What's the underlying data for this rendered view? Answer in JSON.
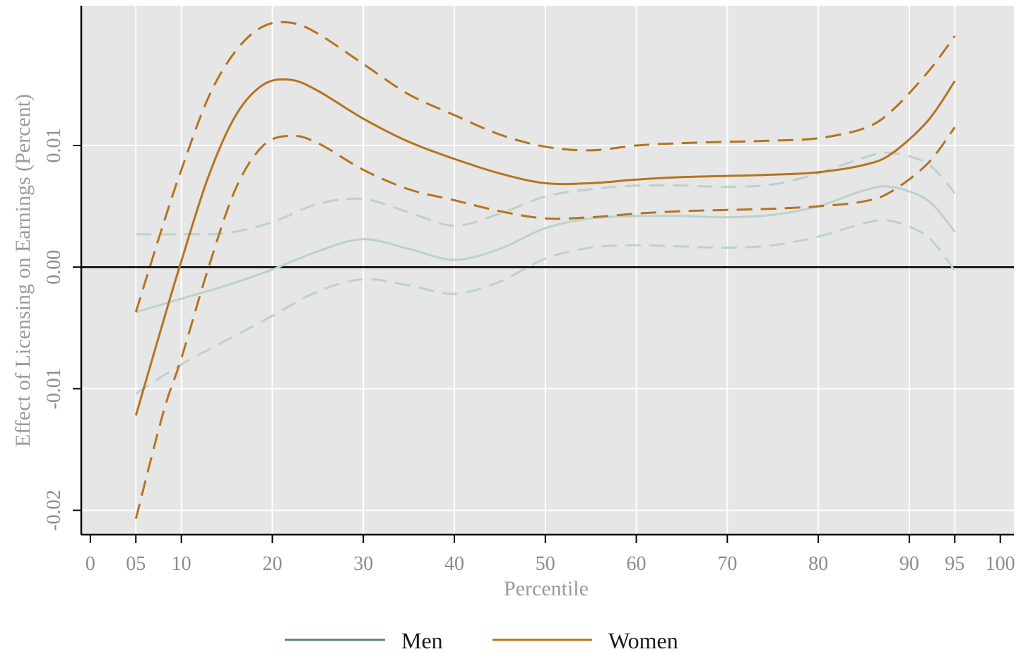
{
  "chart_data": {
    "type": "line",
    "xlabel": "Percentile",
    "ylabel": "Effect of Licensing on Earnings (Percent)",
    "xlim": [
      -1,
      101.5
    ],
    "ylim": [
      -0.022,
      0.0215
    ],
    "x_ticks": [
      {
        "value": 0,
        "label": "0"
      },
      {
        "value": 5,
        "label": "05"
      },
      {
        "value": 10,
        "label": "10"
      },
      {
        "value": 20,
        "label": "20"
      },
      {
        "value": 30,
        "label": "30"
      },
      {
        "value": 40,
        "label": "40"
      },
      {
        "value": 50,
        "label": "50"
      },
      {
        "value": 60,
        "label": "60"
      },
      {
        "value": 70,
        "label": "70"
      },
      {
        "value": 80,
        "label": "80"
      },
      {
        "value": 90,
        "label": "90"
      },
      {
        "value": 95,
        "label": "95"
      },
      {
        "value": 100,
        "label": "100"
      }
    ],
    "x_grid": [
      5,
      10,
      20,
      30,
      40,
      50,
      60,
      70,
      80,
      90,
      95
    ],
    "y_ticks": [
      {
        "value": -0.02,
        "label": "-0.02"
      },
      {
        "value": -0.01,
        "label": "-0.01"
      },
      {
        "value": 0.0,
        "label": "0.00"
      },
      {
        "value": 0.01,
        "label": "0.01"
      }
    ],
    "grid": true,
    "reference_line_y": 0,
    "legend": {
      "position": "bottom",
      "entries": [
        "Men",
        "Women"
      ]
    },
    "series": [
      {
        "name": "Men",
        "role": "estimate",
        "color": "#bcd2cc",
        "legend_color": "#4f8a7a",
        "dashed": false,
        "x": [
          5,
          10,
          15,
          20,
          25,
          30,
          35,
          40,
          45,
          50,
          55,
          60,
          65,
          70,
          75,
          80,
          85,
          88,
          92,
          95
        ],
        "y": [
          -0.0037,
          -0.0026,
          -0.0015,
          -0.0002,
          0.0013,
          0.0023,
          0.0015,
          0.0006,
          0.0015,
          0.0032,
          0.004,
          0.0042,
          0.0042,
          0.0041,
          0.0043,
          0.005,
          0.0063,
          0.0066,
          0.0055,
          0.0029
        ]
      },
      {
        "name": "Men",
        "role": "upper",
        "color": "#bcd2cc",
        "dashed": true,
        "x": [
          5,
          10,
          15,
          20,
          25,
          30,
          35,
          40,
          45,
          50,
          55,
          60,
          65,
          70,
          75,
          80,
          85,
          88,
          92,
          95
        ],
        "y": [
          0.0027,
          0.0027,
          0.0028,
          0.0037,
          0.0052,
          0.0056,
          0.0045,
          0.0034,
          0.0044,
          0.0058,
          0.0064,
          0.0067,
          0.0067,
          0.0066,
          0.0068,
          0.0077,
          0.009,
          0.0094,
          0.0085,
          0.0061
        ]
      },
      {
        "name": "Men",
        "role": "lower",
        "color": "#bcd2cc",
        "dashed": true,
        "x": [
          5,
          10,
          15,
          20,
          25,
          30,
          35,
          40,
          45,
          50,
          55,
          60,
          65,
          70,
          75,
          80,
          85,
          88,
          92,
          95
        ],
        "y": [
          -0.0104,
          -0.008,
          -0.006,
          -0.004,
          -0.002,
          -0.001,
          -0.0015,
          -0.0022,
          -0.0012,
          0.0007,
          0.0016,
          0.0018,
          0.0017,
          0.0016,
          0.0018,
          0.0025,
          0.0036,
          0.0038,
          0.0025,
          -0.0003
        ]
      },
      {
        "name": "Women",
        "role": "estimate",
        "color": "#b5741e",
        "legend_color": "#b5741e",
        "dashed": false,
        "x": [
          5,
          8,
          10,
          13,
          16,
          19,
          22,
          25,
          30,
          35,
          40,
          45,
          50,
          55,
          60,
          65,
          70,
          75,
          80,
          85,
          88,
          92,
          95
        ],
        "y": [
          -0.0122,
          -0.0045,
          0.0005,
          0.0075,
          0.0125,
          0.015,
          0.0154,
          0.0145,
          0.0122,
          0.0103,
          0.0089,
          0.0077,
          0.0069,
          0.0069,
          0.0072,
          0.0074,
          0.0075,
          0.0076,
          0.0078,
          0.0084,
          0.0093,
          0.012,
          0.0153
        ]
      },
      {
        "name": "Women",
        "role": "upper",
        "color": "#b5741e",
        "dashed": true,
        "x": [
          5,
          8,
          10,
          13,
          16,
          19,
          22,
          25,
          30,
          35,
          40,
          45,
          50,
          55,
          60,
          65,
          70,
          75,
          80,
          85,
          88,
          92,
          95
        ],
        "y": [
          -0.0037,
          0.0035,
          0.008,
          0.014,
          0.0178,
          0.0198,
          0.0201,
          0.0192,
          0.0167,
          0.0142,
          0.0125,
          0.0109,
          0.0099,
          0.0096,
          0.01,
          0.0102,
          0.0103,
          0.0104,
          0.0106,
          0.0114,
          0.0128,
          0.016,
          0.019
        ]
      },
      {
        "name": "Women",
        "role": "lower",
        "color": "#b5741e",
        "dashed": true,
        "x": [
          5,
          8,
          10,
          13,
          16,
          19,
          22,
          25,
          30,
          35,
          40,
          45,
          50,
          55,
          60,
          65,
          70,
          75,
          80,
          85,
          88,
          92,
          95
        ],
        "y": [
          -0.0207,
          -0.012,
          -0.0075,
          0.0,
          0.0065,
          0.01,
          0.0108,
          0.0102,
          0.008,
          0.0064,
          0.0055,
          0.0046,
          0.004,
          0.0041,
          0.0044,
          0.0046,
          0.0047,
          0.0048,
          0.005,
          0.0054,
          0.0062,
          0.0085,
          0.0115
        ]
      }
    ]
  }
}
